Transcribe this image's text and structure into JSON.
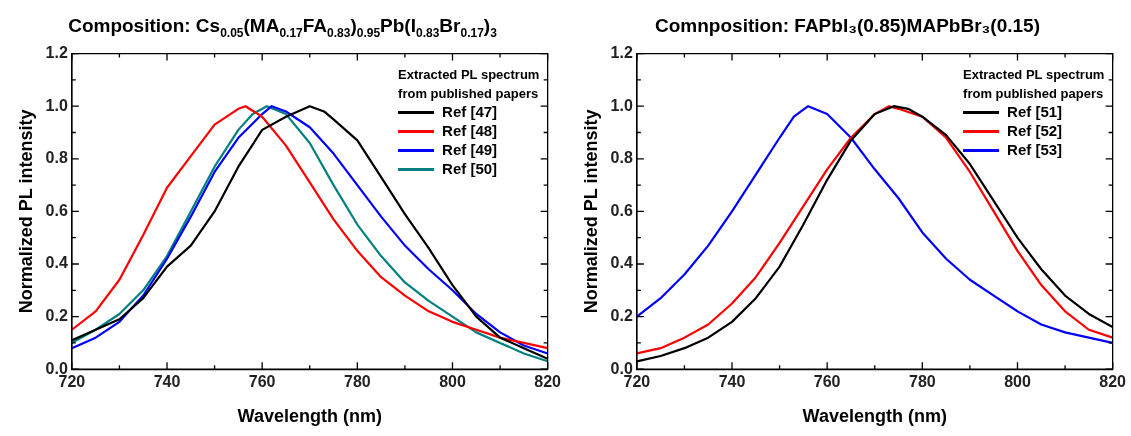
{
  "chart_data": [
    {
      "type": "line",
      "title": "Composition: Cs$_{0.05}$(MA$_{0.17}$FA$_{0.83}$)$_{0.95}$Pb(I$_{0.83}$Br$_{0.17}$)$_{3}$",
      "xlabel": "Wavelength (nm)",
      "ylabel": "Normalized PL intensity",
      "legend_title": "Extracted PL spectrum from published papers",
      "legend": "top right",
      "grid": false,
      "marker": "none",
      "line_style": "solid",
      "xlim": [
        720,
        820
      ],
      "xticks": [
        720,
        {
          "value": 730,
          "label": null
        },
        740,
        {
          "value": 750,
          "label": null
        },
        760,
        {
          "value": 770,
          "label": null
        },
        780,
        {
          "value": 790,
          "label": null
        },
        800,
        {
          "value": 810,
          "label": null
        },
        820
      ],
      "ylim": [
        0,
        1.2
      ],
      "yticks": [
        {
          "value": 0,
          "label": "0.0"
        },
        {
          "value": 0.1,
          "label": null
        },
        0.2,
        {
          "value": 0.3,
          "label": null
        },
        0.4,
        {
          "value": 0.5,
          "label": null
        },
        0.6,
        {
          "value": 0.7,
          "label": null
        },
        0.8,
        {
          "value": 0.9,
          "label": null
        },
        {
          "value": 1,
          "label": "1.0"
        },
        {
          "value": 1.1,
          "label": null
        },
        1.2
      ],
      "series": [
        {
          "name": "Ref [47]",
          "color": "#000000",
          "x": [
            720,
            725,
            730,
            735,
            740,
            745,
            750,
            755,
            760,
            765,
            770,
            773,
            775,
            780,
            785,
            790,
            795,
            800,
            805,
            810,
            815,
            820
          ],
          "values": [
            0.11,
            0.15,
            0.19,
            0.27,
            0.39,
            0.47,
            0.6,
            0.77,
            0.91,
            0.96,
            1.0,
            0.98,
            0.95,
            0.87,
            0.73,
            0.59,
            0.46,
            0.32,
            0.2,
            0.12,
            0.08,
            0.04
          ]
        },
        {
          "name": "Ref [48]",
          "color": "#ff0000",
          "x": [
            720,
            725,
            730,
            735,
            740,
            745,
            750,
            755,
            756.5,
            760,
            765,
            770,
            775,
            780,
            785,
            790,
            795,
            800,
            805,
            810,
            815,
            820
          ],
          "values": [
            0.15,
            0.22,
            0.34,
            0.51,
            0.69,
            0.81,
            0.93,
            0.99,
            1.0,
            0.96,
            0.85,
            0.71,
            0.57,
            0.45,
            0.35,
            0.28,
            0.22,
            0.18,
            0.15,
            0.12,
            0.1,
            0.08
          ]
        },
        {
          "name": "Ref [49]",
          "color": "#0000ff",
          "x": [
            720,
            725,
            730,
            735,
            740,
            745,
            750,
            755,
            760,
            762,
            765,
            770,
            775,
            780,
            785,
            790,
            795,
            800,
            805,
            810,
            815,
            820
          ],
          "values": [
            0.08,
            0.12,
            0.18,
            0.28,
            0.42,
            0.58,
            0.75,
            0.88,
            0.97,
            1.0,
            0.98,
            0.92,
            0.82,
            0.7,
            0.58,
            0.47,
            0.38,
            0.3,
            0.21,
            0.14,
            0.09,
            0.06
          ]
        },
        {
          "name": "Ref [50]",
          "color": "#008080",
          "x": [
            720,
            725,
            730,
            735,
            740,
            745,
            750,
            755,
            758,
            761,
            765,
            770,
            775,
            780,
            785,
            790,
            795,
            800,
            805,
            810,
            815,
            820
          ],
          "values": [
            0.1,
            0.15,
            0.21,
            0.3,
            0.43,
            0.6,
            0.77,
            0.91,
            0.97,
            1.0,
            0.97,
            0.86,
            0.7,
            0.55,
            0.43,
            0.33,
            0.26,
            0.2,
            0.14,
            0.1,
            0.06,
            0.03
          ]
        }
      ]
    },
    {
      "type": "line",
      "title": "Comnposition: FAPbI₃(0.85)MAPbBr₃(0.15)",
      "xlabel": "Wavelength (nm)",
      "ylabel": "Normalized PL intensity",
      "legend_title": "Extracted PL spectrum from published papers",
      "legend": "top right",
      "grid": false,
      "marker": "none",
      "line_style": "solid",
      "xlim": [
        720,
        820
      ],
      "xticks": [
        720,
        {
          "value": 730,
          "label": null
        },
        740,
        {
          "value": 750,
          "label": null
        },
        760,
        {
          "value": 770,
          "label": null
        },
        780,
        {
          "value": 790,
          "label": null
        },
        800,
        {
          "value": 810,
          "label": null
        },
        820
      ],
      "ylim": [
        0,
        1.2
      ],
      "yticks": [
        {
          "value": 0,
          "label": "0.0"
        },
        {
          "value": 0.1,
          "label": null
        },
        0.2,
        {
          "value": 0.3,
          "label": null
        },
        0.4,
        {
          "value": 0.5,
          "label": null
        },
        0.6,
        {
          "value": 0.7,
          "label": null
        },
        0.8,
        {
          "value": 0.9,
          "label": null
        },
        {
          "value": 1,
          "label": "1.0"
        },
        {
          "value": 1.1,
          "label": null
        },
        1.2
      ],
      "series": [
        {
          "name": "Ref [51]",
          "color": "#000000",
          "x": [
            720,
            725,
            730,
            735,
            740,
            745,
            750,
            755,
            760,
            765,
            770,
            774,
            777,
            780,
            785,
            790,
            795,
            800,
            805,
            810,
            815,
            820
          ],
          "values": [
            0.03,
            0.05,
            0.08,
            0.12,
            0.18,
            0.27,
            0.39,
            0.55,
            0.72,
            0.87,
            0.97,
            1.0,
            0.99,
            0.96,
            0.89,
            0.78,
            0.64,
            0.5,
            0.38,
            0.28,
            0.21,
            0.16
          ]
        },
        {
          "name": "Ref [52]",
          "color": "#ff0000",
          "x": [
            720,
            725,
            730,
            735,
            740,
            745,
            750,
            755,
            760,
            765,
            770,
            773,
            775,
            780,
            785,
            790,
            795,
            800,
            805,
            810,
            815,
            820
          ],
          "values": [
            0.06,
            0.08,
            0.12,
            0.17,
            0.25,
            0.35,
            0.48,
            0.62,
            0.76,
            0.88,
            0.97,
            1.0,
            0.99,
            0.96,
            0.88,
            0.75,
            0.6,
            0.45,
            0.32,
            0.22,
            0.15,
            0.12
          ]
        },
        {
          "name": "Ref [53]",
          "color": "#0000ff",
          "x": [
            720,
            725,
            730,
            735,
            740,
            745,
            750,
            753,
            756,
            760,
            765,
            770,
            775,
            780,
            785,
            790,
            795,
            800,
            805,
            810,
            815,
            820
          ],
          "values": [
            0.2,
            0.27,
            0.36,
            0.47,
            0.6,
            0.74,
            0.88,
            0.96,
            1.0,
            0.97,
            0.88,
            0.76,
            0.65,
            0.52,
            0.42,
            0.34,
            0.28,
            0.22,
            0.17,
            0.14,
            0.12,
            0.1
          ]
        }
      ]
    }
  ]
}
